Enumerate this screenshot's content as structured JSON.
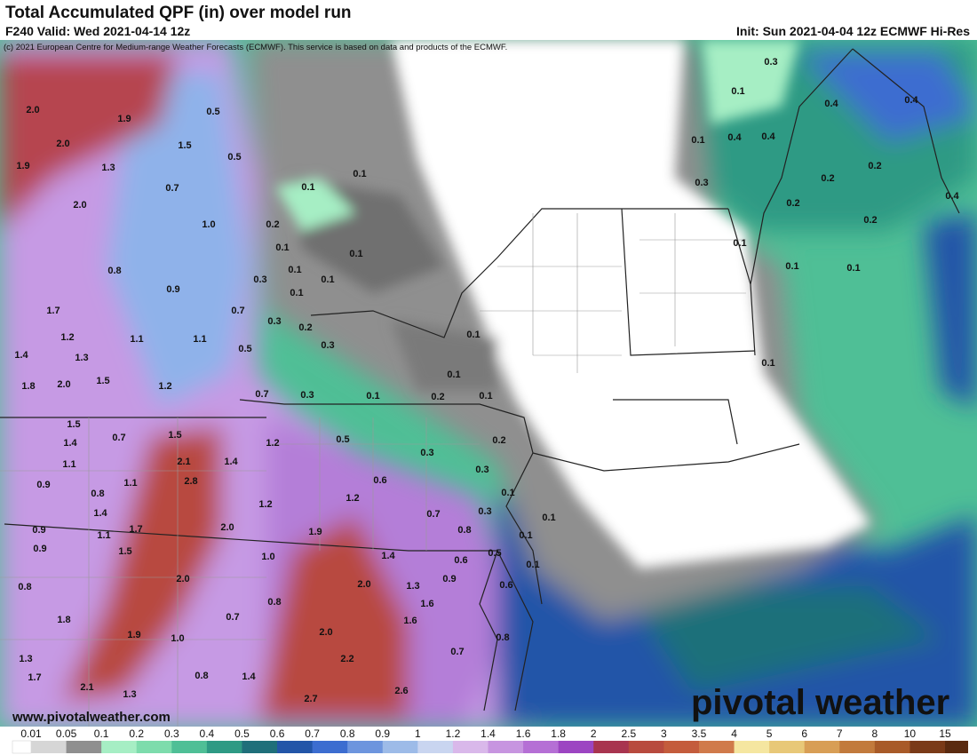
{
  "header": {
    "title": "Total Accumulated QPF (in) over model run",
    "valid": "F240 Valid: Wed 2021-04-14 12z",
    "init": "Init: Sun 2021-04-04 12z ECMWF Hi-Res",
    "credit": "(c) 2021 European Centre for Medium-range Weather Forecasts (ECMWF). This service is based on data and products of the ECMWF."
  },
  "map": {
    "labels": [
      "0.3",
      "0.1",
      "0.4",
      "0.4",
      "0.1",
      "0.4",
      "0.4",
      "0.2",
      "0.3",
      "0.2",
      "0.2",
      "0.2",
      "0.4",
      "0.1",
      "0.1",
      "0.1",
      "0.1",
      "2.0",
      "1.9",
      "2.0",
      "0.5",
      "1.5",
      "0.5",
      "1.9",
      "1.3",
      "0.1",
      "0.1",
      "0.7",
      "2.0",
      "1.0",
      "0.2",
      "0.1",
      "0.1",
      "0.8",
      "0.1",
      "0.1",
      "0.3",
      "0.1",
      "0.9",
      "1.7",
      "0.7",
      "0.3",
      "0.2",
      "1.2",
      "1.1",
      "1.1",
      "0.3",
      "0.1",
      "0.5",
      "1.4",
      "1.3",
      "1.5",
      "0.1",
      "1.8",
      "2.0",
      "1.2",
      "0.7",
      "0.3",
      "0.1",
      "0.2",
      "0.1",
      "1.5",
      "1.4",
      "0.7",
      "1.5",
      "1.2",
      "0.5",
      "0.2",
      "1.1",
      "2.1",
      "1.4",
      "0.3",
      "0.3",
      "0.9",
      "2.8",
      "0.6",
      "1.1",
      "0.8",
      "0.1",
      "1.4",
      "1.2",
      "1.2",
      "0.3",
      "0.7",
      "0.1",
      "1.7",
      "0.9",
      "1.1",
      "2.0",
      "1.9",
      "0.8",
      "0.1",
      "0.9",
      "1.5",
      "1.0",
      "1.4",
      "0.5",
      "0.6",
      "0.1",
      "0.8",
      "2.0",
      "2.0",
      "1.3",
      "0.9",
      "0.6",
      "1.6",
      "0.8",
      "0.7",
      "1.8",
      "1.6",
      "1.9",
      "1.0",
      "2.0",
      "0.8",
      "1.3",
      "0.7",
      "2.2",
      "1.7",
      "0.8",
      "1.4",
      "2.1",
      "1.3",
      "2.6",
      "2.7"
    ]
  },
  "colorbar": {
    "levels": [
      "0.01",
      "0.05",
      "0.1",
      "0.2",
      "0.3",
      "0.4",
      "0.5",
      "0.6",
      "0.7",
      "0.8",
      "0.9",
      "1",
      "1.2",
      "1.4",
      "1.6",
      "1.8",
      "2",
      "2.5",
      "3",
      "3.5",
      "4",
      "5",
      "6",
      "7",
      "8",
      "10",
      "15"
    ],
    "colors": [
      "#d6d6d6",
      "#8f8f8f",
      "#a6eec4",
      "#7ddcac",
      "#4fbf96",
      "#2e9a84",
      "#1f6f7a",
      "#2255a8",
      "#3c6dd0",
      "#6d95de",
      "#9dbbe8",
      "#c9d5f0",
      "#d9b8ea",
      "#c795e0",
      "#b56fd5",
      "#9c45c2",
      "#a8344f",
      "#b84a3e",
      "#c45c3c",
      "#d07a4a",
      "#f5e6a0",
      "#e8c878",
      "#d89e55",
      "#c27a3c",
      "#a85a28",
      "#7a3a18"
    ]
  },
  "footer": {
    "website": "www.pivotalweather.com",
    "logo": "pivotal weather"
  }
}
